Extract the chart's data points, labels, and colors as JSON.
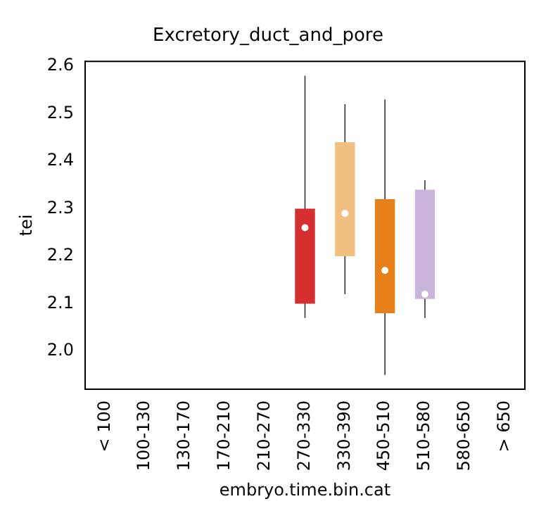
{
  "chart_data": {
    "type": "box",
    "title": "Excretory_duct_and_pore",
    "xlabel": "embryo.time.bin.cat",
    "ylabel": "tei",
    "categories": [
      "< 100",
      "100-130",
      "130-170",
      "170-210",
      "210-270",
      "270-330",
      "330-390",
      "450-510",
      "510-580",
      "580-650",
      "> 650"
    ],
    "boxes": [
      null,
      null,
      null,
      null,
      null,
      {
        "low": 2.07,
        "q1": 2.1,
        "median": 2.26,
        "q3": 2.3,
        "high": 2.58
      },
      {
        "low": 2.12,
        "q1": 2.2,
        "median": 2.29,
        "q3": 2.44,
        "high": 2.52
      },
      {
        "low": 1.95,
        "q1": 2.08,
        "median": 2.17,
        "q3": 2.32,
        "high": 2.53
      },
      {
        "low": 2.07,
        "q1": 2.11,
        "median": 2.12,
        "q3": 2.34,
        "high": 2.36
      },
      null,
      null
    ],
    "colors": [
      null,
      null,
      null,
      null,
      null,
      "#d62f2f",
      "#f1c080",
      "#e8801a",
      "#c9b5d9",
      null,
      null
    ],
    "ylim": [
      1.92,
      2.61
    ],
    "yticks": [
      {
        "value": 2,
        "label": "2.0"
      },
      2.1,
      2.2,
      2.3,
      2.4,
      2.5,
      2.6
    ],
    "grid": false,
    "legend": false
  }
}
